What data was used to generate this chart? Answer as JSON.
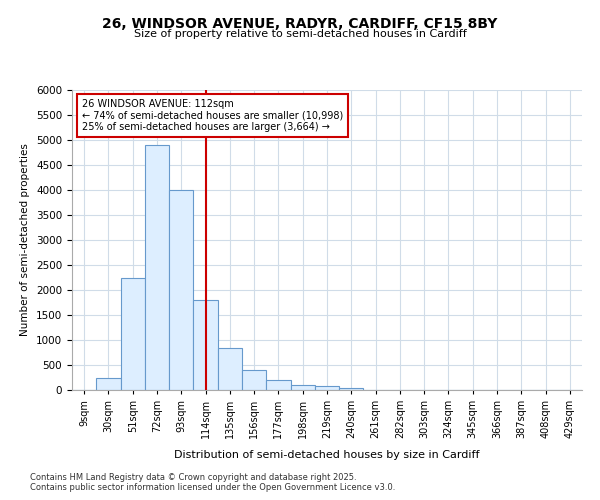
{
  "title_line1": "26, WINDSOR AVENUE, RADYR, CARDIFF, CF15 8BY",
  "title_line2": "Size of property relative to semi-detached houses in Cardiff",
  "xlabel": "Distribution of semi-detached houses by size in Cardiff",
  "ylabel": "Number of semi-detached properties",
  "annotation_line1": "26 WINDSOR AVENUE: 112sqm",
  "annotation_line2": "← 74% of semi-detached houses are smaller (10,998)",
  "annotation_line3": "25% of semi-detached houses are larger (3,664) →",
  "categories": [
    "9sqm",
    "30sqm",
    "51sqm",
    "72sqm",
    "93sqm",
    "114sqm",
    "135sqm",
    "156sqm",
    "177sqm",
    "198sqm",
    "219sqm",
    "240sqm",
    "261sqm",
    "282sqm",
    "303sqm",
    "324sqm",
    "345sqm",
    "366sqm",
    "387sqm",
    "408sqm",
    "429sqm"
  ],
  "values": [
    0,
    250,
    2250,
    4900,
    4000,
    1800,
    850,
    400,
    200,
    100,
    75,
    50,
    0,
    0,
    0,
    0,
    0,
    0,
    0,
    0,
    0
  ],
  "bar_color": "#ddeeff",
  "bar_edge_color": "#6699cc",
  "vline_color": "#cc0000",
  "vline_idx": 5,
  "ylim": [
    0,
    6000
  ],
  "yticks": [
    0,
    500,
    1000,
    1500,
    2000,
    2500,
    3000,
    3500,
    4000,
    4500,
    5000,
    5500,
    6000
  ],
  "footer_line1": "Contains HM Land Registry data © Crown copyright and database right 2025.",
  "footer_line2": "Contains public sector information licensed under the Open Government Licence v3.0.",
  "background_color": "#ffffff",
  "grid_color": "#d0dce8"
}
